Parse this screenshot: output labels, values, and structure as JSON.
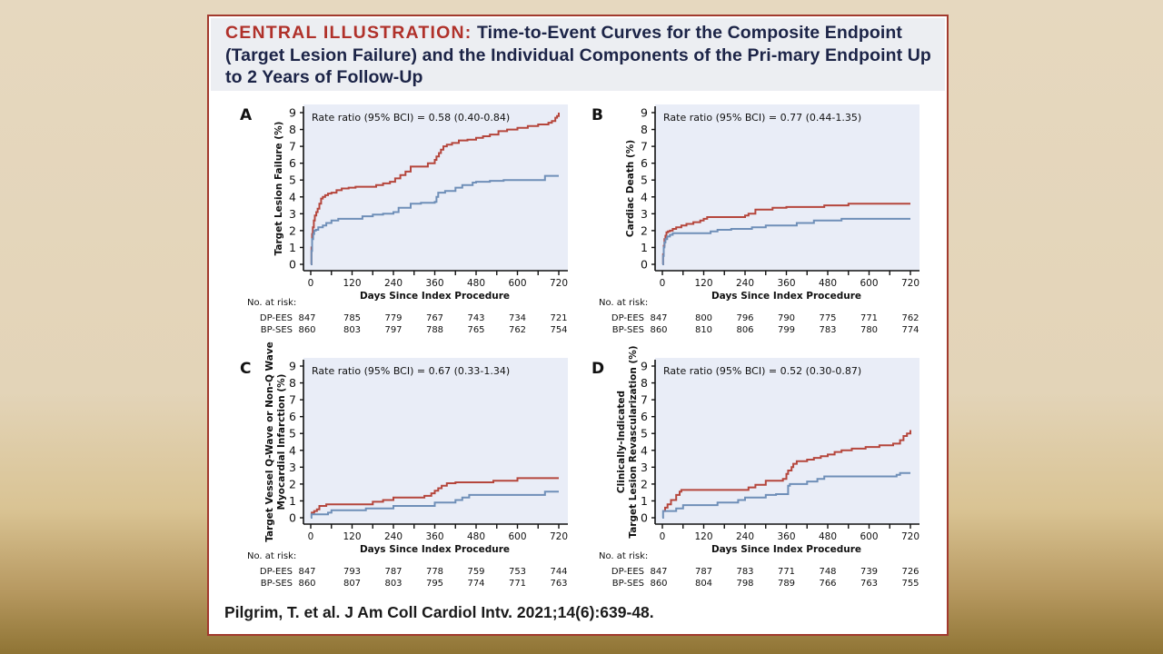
{
  "title": {
    "lead": "CENTRAL ILLUSTRATION:",
    "text": " Time-to-Event Curves for the Composite Endpoint (Target Lesion Failure) and the Individual Components of the Pri-mary Endpoint Up to 2 Years of Follow-Up"
  },
  "citation": "Pilgrim, T. et al. J Am Coll Cardiol Intv. 2021;14(6):639-48.",
  "colors": {
    "series_dp_ees": "#b5463c",
    "series_bp_ses": "#6f8fb8",
    "plot_bg": "#e9edf7",
    "frame": "#a23a2e",
    "title_lead": "#b0312a",
    "title_text": "#1c2447"
  },
  "chart_data": [
    {
      "panel": "A",
      "type": "line",
      "step": true,
      "ylabel": [
        "Target Lesion Failure (%)"
      ],
      "xlabel": "Days Since Index Procedure",
      "annotation": "Rate ratio (95% BCI) = 0.58 (0.40-0.84)",
      "xlim": [
        0,
        720
      ],
      "ylim": [
        0,
        9
      ],
      "xticks": [
        0,
        120,
        240,
        360,
        480,
        600,
        720
      ],
      "yticks": [
        0,
        1,
        2,
        3,
        4,
        5,
        6,
        7,
        8,
        9
      ],
      "series": [
        {
          "name": "DP-EES",
          "color": "#b5463c",
          "x": [
            0,
            2,
            4,
            6,
            9,
            12,
            16,
            20,
            25,
            30,
            35,
            42,
            50,
            60,
            75,
            90,
            110,
            130,
            160,
            190,
            210,
            230,
            245,
            260,
            275,
            290,
            310,
            340,
            360,
            365,
            372,
            378,
            385,
            395,
            410,
            430,
            455,
            480,
            500,
            520,
            545,
            570,
            600,
            630,
            660,
            690,
            700,
            710,
            715,
            720
          ],
          "y": [
            0,
            1.0,
            1.8,
            2.2,
            2.6,
            2.9,
            3.1,
            3.3,
            3.6,
            3.9,
            4.0,
            4.1,
            4.2,
            4.25,
            4.4,
            4.5,
            4.55,
            4.6,
            4.6,
            4.7,
            4.8,
            4.9,
            5.1,
            5.3,
            5.5,
            5.8,
            5.8,
            6.0,
            6.2,
            6.4,
            6.6,
            6.8,
            7.0,
            7.1,
            7.2,
            7.35,
            7.4,
            7.5,
            7.6,
            7.7,
            7.9,
            8.0,
            8.1,
            8.2,
            8.3,
            8.4,
            8.5,
            8.7,
            8.8,
            9.0
          ]
        },
        {
          "name": "BP-SES",
          "color": "#6f8fb8",
          "x": [
            0,
            2,
            4,
            7,
            10,
            15,
            22,
            35,
            45,
            60,
            80,
            120,
            150,
            180,
            210,
            240,
            255,
            290,
            320,
            360,
            365,
            370,
            390,
            420,
            440,
            470,
            480,
            520,
            560,
            620,
            660,
            680,
            720
          ],
          "y": [
            0,
            0.8,
            1.5,
            1.8,
            2.0,
            2.05,
            2.2,
            2.3,
            2.45,
            2.6,
            2.7,
            2.7,
            2.85,
            2.95,
            3.0,
            3.1,
            3.35,
            3.6,
            3.65,
            3.7,
            4.0,
            4.25,
            4.35,
            4.55,
            4.7,
            4.85,
            4.9,
            4.95,
            5.0,
            5.0,
            5.0,
            5.25,
            5.25
          ]
        }
      ],
      "at_risk": {
        "label": "No. at risk:",
        "rows": [
          {
            "name": "DP-EES",
            "values": [
              847,
              785,
              779,
              767,
              743,
              734,
              721
            ]
          },
          {
            "name": "BP-SES",
            "values": [
              860,
              803,
              797,
              788,
              765,
              762,
              754
            ]
          }
        ]
      }
    },
    {
      "panel": "B",
      "type": "line",
      "step": true,
      "ylabel": [
        "Cardiac Death (%)"
      ],
      "xlabel": "Days Since Index Procedure",
      "annotation": "Rate ratio (95% BCI) = 0.77 (0.44-1.35)",
      "xlim": [
        0,
        720
      ],
      "ylim": [
        0,
        9
      ],
      "xticks": [
        0,
        120,
        240,
        360,
        480,
        600,
        720
      ],
      "yticks": [
        0,
        1,
        2,
        3,
        4,
        5,
        6,
        7,
        8,
        9
      ],
      "series": [
        {
          "name": "DP-EES",
          "color": "#b5463c",
          "x": [
            0,
            2,
            4,
            6,
            9,
            12,
            16,
            22,
            30,
            40,
            55,
            70,
            90,
            110,
            120,
            130,
            230,
            240,
            250,
            270,
            320,
            360,
            430,
            470,
            540,
            720
          ],
          "y": [
            0,
            0.6,
            1.1,
            1.5,
            1.7,
            1.9,
            1.95,
            2.0,
            2.1,
            2.2,
            2.3,
            2.4,
            2.5,
            2.6,
            2.7,
            2.8,
            2.8,
            2.9,
            3.0,
            3.25,
            3.35,
            3.4,
            3.4,
            3.5,
            3.6,
            3.6
          ]
        },
        {
          "name": "BP-SES",
          "color": "#6f8fb8",
          "x": [
            0,
            2,
            4,
            6,
            9,
            14,
            22,
            30,
            40,
            140,
            160,
            200,
            260,
            300,
            390,
            440,
            520,
            720
          ],
          "y": [
            0,
            0.5,
            1.0,
            1.3,
            1.5,
            1.65,
            1.75,
            1.85,
            1.85,
            1.95,
            2.05,
            2.1,
            2.2,
            2.3,
            2.45,
            2.6,
            2.7,
            2.7
          ]
        }
      ],
      "at_risk": {
        "label": "No. at risk:",
        "rows": [
          {
            "name": "DP-EES",
            "values": [
              847,
              800,
              796,
              790,
              775,
              771,
              762
            ]
          },
          {
            "name": "BP-SES",
            "values": [
              860,
              810,
              806,
              799,
              783,
              780,
              774
            ]
          }
        ]
      }
    },
    {
      "panel": "C",
      "type": "line",
      "step": true,
      "ylabel": [
        "Target Vessel Q-Wave or Non-Q Wave",
        "Myocardial Infarction (%)"
      ],
      "xlabel": "Days Since Index Procedure",
      "annotation": "Rate ratio (95% BCI) = 0.67 (0.33-1.34)",
      "xlim": [
        0,
        720
      ],
      "ylim": [
        0,
        9
      ],
      "xticks": [
        0,
        120,
        240,
        360,
        480,
        600,
        720
      ],
      "yticks": [
        0,
        1,
        2,
        3,
        4,
        5,
        6,
        7,
        8,
        9
      ],
      "series": [
        {
          "name": "DP-EES",
          "color": "#b5463c",
          "x": [
            0,
            3,
            10,
            18,
            25,
            45,
            180,
            210,
            240,
            330,
            350,
            360,
            370,
            380,
            395,
            420,
            530,
            600,
            720
          ],
          "y": [
            0.2,
            0.3,
            0.4,
            0.5,
            0.7,
            0.8,
            0.95,
            1.05,
            1.2,
            1.3,
            1.45,
            1.6,
            1.75,
            1.9,
            2.05,
            2.1,
            2.2,
            2.35,
            2.35
          ]
        },
        {
          "name": "BP-SES",
          "color": "#6f8fb8",
          "x": [
            0,
            2,
            50,
            60,
            160,
            240,
            360,
            420,
            440,
            460,
            680,
            720
          ],
          "y": [
            0,
            0.2,
            0.3,
            0.45,
            0.55,
            0.7,
            0.9,
            1.05,
            1.2,
            1.35,
            1.55,
            1.55
          ]
        }
      ],
      "at_risk": {
        "label": "No. at risk:",
        "rows": [
          {
            "name": "DP-EES",
            "values": [
              847,
              793,
              787,
              778,
              759,
              753,
              744
            ]
          },
          {
            "name": "BP-SES",
            "values": [
              860,
              807,
              803,
              795,
              774,
              771,
              763
            ]
          }
        ]
      }
    },
    {
      "panel": "D",
      "type": "line",
      "step": true,
      "ylabel": [
        "Clinically-Indicated",
        "Target Lesion Revascularization (%)"
      ],
      "xlabel": "Days Since Index Procedure",
      "annotation": "Rate ratio (95% BCI) = 0.52 (0.30-0.87)",
      "xlim": [
        0,
        720
      ],
      "ylim": [
        0,
        9
      ],
      "xticks": [
        0,
        120,
        240,
        360,
        480,
        600,
        720
      ],
      "yticks": [
        0,
        1,
        2,
        3,
        4,
        5,
        6,
        7,
        8,
        9
      ],
      "series": [
        {
          "name": "DP-EES",
          "color": "#b5463c",
          "x": [
            0,
            8,
            15,
            25,
            40,
            50,
            55,
            240,
            250,
            270,
            300,
            350,
            360,
            365,
            375,
            380,
            390,
            420,
            440,
            460,
            480,
            500,
            520,
            550,
            590,
            630,
            670,
            690,
            700,
            710,
            720
          ],
          "y": [
            0.4,
            0.6,
            0.8,
            1.05,
            1.35,
            1.55,
            1.65,
            1.65,
            1.8,
            1.95,
            2.2,
            2.3,
            2.6,
            2.8,
            3.0,
            3.2,
            3.35,
            3.45,
            3.55,
            3.65,
            3.75,
            3.9,
            4.0,
            4.1,
            4.2,
            4.3,
            4.4,
            4.6,
            4.85,
            5.0,
            5.2
          ]
        },
        {
          "name": "BP-SES",
          "color": "#6f8fb8",
          "x": [
            0,
            2,
            40,
            60,
            160,
            220,
            240,
            300,
            330,
            365,
            370,
            420,
            450,
            470,
            680,
            690,
            720
          ],
          "y": [
            0,
            0.4,
            0.55,
            0.75,
            0.9,
            1.05,
            1.2,
            1.35,
            1.4,
            1.9,
            2.0,
            2.15,
            2.3,
            2.45,
            2.55,
            2.65,
            2.65
          ]
        }
      ],
      "at_risk": {
        "label": "No. at risk:",
        "rows": [
          {
            "name": "DP-EES",
            "values": [
              847,
              787,
              783,
              771,
              748,
              739,
              726
            ]
          },
          {
            "name": "BP-SES",
            "values": [
              860,
              804,
              798,
              789,
              766,
              763,
              755
            ]
          }
        ]
      }
    }
  ]
}
